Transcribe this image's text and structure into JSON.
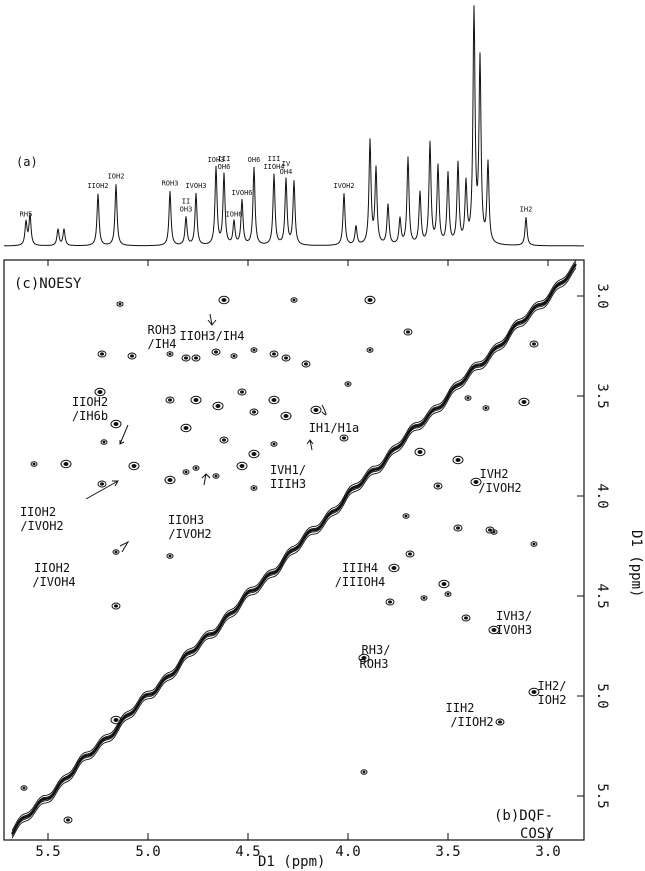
{
  "chart_data": {
    "type": "heatmap",
    "title": "",
    "panel_labels": {
      "a": "(a)",
      "noesy": "(c)NOESY",
      "dqf_line1": "(b)DQF-",
      "dqf_line2": "COSY"
    },
    "xlabel": "D1  (ppm)",
    "ylabel": "D1  (ppm)",
    "xlim": [
      5.72,
      2.82
    ],
    "ylim": [
      2.82,
      5.72
    ],
    "x_ticks": [
      "5.5",
      "5.0",
      "4.5",
      "4.0",
      "3.5",
      "3.0"
    ],
    "x_tick_values": [
      5.5,
      5.0,
      4.5,
      4.0,
      3.5,
      3.0
    ],
    "y_ticks": [
      "3.0",
      "3.5",
      "4.0",
      "4.5",
      "5.0",
      "5.5"
    ],
    "y_tick_values": [
      3.0,
      3.5,
      4.0,
      4.5,
      5.0,
      5.5
    ],
    "spectrum_peaks": [
      {
        "ppm": 5.61,
        "h": 0.1,
        "label": "RH5"
      },
      {
        "ppm": 5.59,
        "h": 0.13,
        "label": ""
      },
      {
        "ppm": 5.45,
        "h": 0.07,
        "label": ""
      },
      {
        "ppm": 5.42,
        "h": 0.07,
        "label": ""
      },
      {
        "ppm": 5.25,
        "h": 0.22,
        "label": "IIOH2"
      },
      {
        "ppm": 5.16,
        "h": 0.26,
        "label": "IOH2"
      },
      {
        "ppm": 4.89,
        "h": 0.23,
        "label": "ROH3"
      },
      {
        "ppm": 4.81,
        "h": 0.12,
        "label": "II OH3"
      },
      {
        "ppm": 4.76,
        "h": 0.22,
        "label": "IVOH3"
      },
      {
        "ppm": 4.66,
        "h": 0.33,
        "label": "IOH3"
      },
      {
        "ppm": 4.62,
        "h": 0.3,
        "label": "III OH6"
      },
      {
        "ppm": 4.57,
        "h": 0.1,
        "label": "IOH6"
      },
      {
        "ppm": 4.53,
        "h": 0.19,
        "label": "IVOH6"
      },
      {
        "ppm": 4.47,
        "h": 0.33,
        "label": "OH6"
      },
      {
        "ppm": 4.37,
        "h": 0.3,
        "label": "III IIOH4"
      },
      {
        "ppm": 4.31,
        "h": 0.28,
        "label": "IV OH4"
      },
      {
        "ppm": 4.27,
        "h": 0.27,
        "label": ""
      },
      {
        "ppm": 4.02,
        "h": 0.22,
        "label": "IVOH2"
      },
      {
        "ppm": 3.96,
        "h": 0.08,
        "label": ""
      },
      {
        "ppm": 3.89,
        "h": 0.44,
        "label": ""
      },
      {
        "ppm": 3.86,
        "h": 0.32,
        "label": ""
      },
      {
        "ppm": 3.8,
        "h": 0.17,
        "label": ""
      },
      {
        "ppm": 3.74,
        "h": 0.11,
        "label": ""
      },
      {
        "ppm": 3.7,
        "h": 0.37,
        "label": ""
      },
      {
        "ppm": 3.64,
        "h": 0.22,
        "label": ""
      },
      {
        "ppm": 3.59,
        "h": 0.43,
        "label": ""
      },
      {
        "ppm": 3.55,
        "h": 0.33,
        "label": ""
      },
      {
        "ppm": 3.5,
        "h": 0.3,
        "label": ""
      },
      {
        "ppm": 3.45,
        "h": 0.34,
        "label": ""
      },
      {
        "ppm": 3.41,
        "h": 0.25,
        "label": ""
      },
      {
        "ppm": 3.37,
        "h": 1.0,
        "label": ""
      },
      {
        "ppm": 3.34,
        "h": 0.77,
        "label": ""
      },
      {
        "ppm": 3.3,
        "h": 0.34,
        "label": ""
      },
      {
        "ppm": 3.11,
        "h": 0.12,
        "label": "IH2"
      }
    ],
    "annotations": [
      {
        "text": "ROH3",
        "x": 4.93,
        "y": 3.19
      },
      {
        "text": "/IH4",
        "x": 4.93,
        "y": 3.26
      },
      {
        "text": "IIOH3/IH4",
        "x": 4.68,
        "y": 3.22
      },
      {
        "text": "IIOH2",
        "x": 5.29,
        "y": 3.55
      },
      {
        "text": "/IH6b",
        "x": 5.29,
        "y": 3.62
      },
      {
        "text": "IH1/H1a",
        "x": 4.07,
        "y": 3.68
      },
      {
        "text": "IVH1/",
        "x": 4.3,
        "y": 3.89
      },
      {
        "text": "IIIH3",
        "x": 4.3,
        "y": 3.96
      },
      {
        "text": "IVH2",
        "x": 3.27,
        "y": 3.91
      },
      {
        "text": "/IVOH2",
        "x": 3.24,
        "y": 3.98
      },
      {
        "text": "IIOH2",
        "x": 5.55,
        "y": 4.1
      },
      {
        "text": "/IVOH2",
        "x": 5.53,
        "y": 4.17
      },
      {
        "text": "IIOH3",
        "x": 4.81,
        "y": 4.14
      },
      {
        "text": "/IVOH2",
        "x": 4.79,
        "y": 4.21
      },
      {
        "text": "IIOH2",
        "x": 5.48,
        "y": 4.38
      },
      {
        "text": "/IVOH4",
        "x": 5.47,
        "y": 4.45
      },
      {
        "text": "IIIH4",
        "x": 3.94,
        "y": 4.38
      },
      {
        "text": "/IIIOH4",
        "x": 3.94,
        "y": 4.45
      },
      {
        "text": "IVH3/",
        "x": 3.17,
        "y": 4.62
      },
      {
        "text": "IVOH3",
        "x": 3.17,
        "y": 4.69
      },
      {
        "text": "RH3/",
        "x": 3.86,
        "y": 4.79
      },
      {
        "text": "ROH3",
        "x": 3.87,
        "y": 4.86
      },
      {
        "text": "IH2/",
        "x": 2.98,
        "y": 4.97
      },
      {
        "text": "IOH2",
        "x": 2.98,
        "y": 5.04
      },
      {
        "text": "IIH2",
        "x": 3.44,
        "y": 5.08
      },
      {
        "text": "/IIOH2",
        "x": 3.38,
        "y": 5.15
      }
    ],
    "cross_peaks": [
      {
        "x": 5.62,
        "y": 5.46
      },
      {
        "x": 5.4,
        "y": 5.62
      },
      {
        "x": 5.41,
        "y": 3.84
      },
      {
        "x": 5.57,
        "y": 3.84
      },
      {
        "x": 5.23,
        "y": 3.29
      },
      {
        "x": 5.24,
        "y": 3.48
      },
      {
        "x": 5.22,
        "y": 3.73
      },
      {
        "x": 5.23,
        "y": 3.94
      },
      {
        "x": 5.16,
        "y": 3.64
      },
      {
        "x": 5.16,
        "y": 4.28
      },
      {
        "x": 5.16,
        "y": 4.55
      },
      {
        "x": 5.16,
        "y": 5.12
      },
      {
        "x": 5.14,
        "y": 3.04
      },
      {
        "x": 5.08,
        "y": 3.3
      },
      {
        "x": 5.07,
        "y": 3.85
      },
      {
        "x": 4.89,
        "y": 3.29
      },
      {
        "x": 4.89,
        "y": 3.52
      },
      {
        "x": 4.89,
        "y": 3.92
      },
      {
        "x": 4.89,
        "y": 4.3
      },
      {
        "x": 4.81,
        "y": 3.31
      },
      {
        "x": 4.81,
        "y": 3.66
      },
      {
        "x": 4.81,
        "y": 3.88
      },
      {
        "x": 4.76,
        "y": 3.31
      },
      {
        "x": 4.76,
        "y": 3.52
      },
      {
        "x": 4.76,
        "y": 3.86
      },
      {
        "x": 4.66,
        "y": 3.28
      },
      {
        "x": 4.65,
        "y": 3.55
      },
      {
        "x": 4.66,
        "y": 3.9
      },
      {
        "x": 4.62,
        "y": 3.72
      },
      {
        "x": 4.62,
        "y": 3.02
      },
      {
        "x": 4.57,
        "y": 3.3
      },
      {
        "x": 4.53,
        "y": 3.48
      },
      {
        "x": 4.53,
        "y": 3.85
      },
      {
        "x": 4.47,
        "y": 3.27
      },
      {
        "x": 4.47,
        "y": 3.58
      },
      {
        "x": 4.47,
        "y": 3.79
      },
      {
        "x": 4.47,
        "y": 3.96
      },
      {
        "x": 4.37,
        "y": 3.29
      },
      {
        "x": 4.37,
        "y": 3.52
      },
      {
        "x": 4.37,
        "y": 3.74
      },
      {
        "x": 4.31,
        "y": 3.31
      },
      {
        "x": 4.31,
        "y": 3.6
      },
      {
        "x": 4.27,
        "y": 3.02
      },
      {
        "x": 4.21,
        "y": 3.34
      },
      {
        "x": 4.16,
        "y": 3.57
      },
      {
        "x": 4.0,
        "y": 3.44
      },
      {
        "x": 4.02,
        "y": 3.71
      },
      {
        "x": 3.89,
        "y": 3.02
      },
      {
        "x": 3.89,
        "y": 3.27
      },
      {
        "x": 3.7,
        "y": 3.18
      },
      {
        "x": 3.92,
        "y": 4.81
      },
      {
        "x": 3.92,
        "y": 5.38
      },
      {
        "x": 3.79,
        "y": 4.53
      },
      {
        "x": 3.77,
        "y": 4.36
      },
      {
        "x": 3.71,
        "y": 4.1
      },
      {
        "x": 3.69,
        "y": 4.29
      },
      {
        "x": 3.64,
        "y": 3.78
      },
      {
        "x": 3.62,
        "y": 4.51
      },
      {
        "x": 3.55,
        "y": 3.95
      },
      {
        "x": 3.52,
        "y": 4.44
      },
      {
        "x": 3.5,
        "y": 4.49
      },
      {
        "x": 3.45,
        "y": 4.16
      },
      {
        "x": 3.45,
        "y": 3.82
      },
      {
        "x": 3.4,
        "y": 3.51
      },
      {
        "x": 3.41,
        "y": 4.61
      },
      {
        "x": 3.36,
        "y": 3.93
      },
      {
        "x": 3.31,
        "y": 3.56
      },
      {
        "x": 3.29,
        "y": 4.17
      },
      {
        "x": 3.27,
        "y": 4.67
      },
      {
        "x": 3.27,
        "y": 4.18
      },
      {
        "x": 3.24,
        "y": 5.13
      },
      {
        "x": 3.12,
        "y": 3.53
      },
      {
        "x": 3.07,
        "y": 4.24
      },
      {
        "x": 3.07,
        "y": 3.24
      },
      {
        "x": 3.07,
        "y": 4.98
      }
    ]
  }
}
